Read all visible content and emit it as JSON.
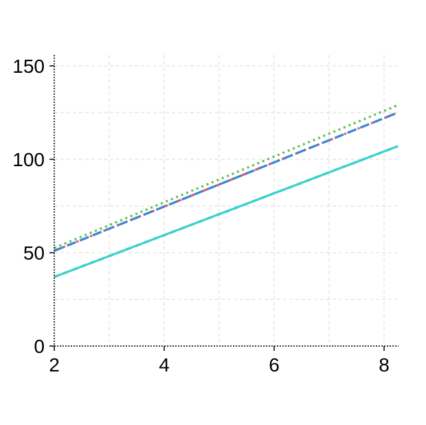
{
  "chart_data": {
    "type": "line",
    "title": "",
    "xlabel": "",
    "ylabel": "",
    "xlim": [
      2,
      8.25
    ],
    "ylim": [
      0,
      150
    ],
    "x_ticks": [
      2,
      4,
      6,
      8
    ],
    "y_ticks": [
      0,
      50,
      100,
      150
    ],
    "x_tick_labels": [
      "2",
      "4",
      "6",
      "8"
    ],
    "y_tick_labels": [
      "0",
      "50",
      "100",
      "150"
    ],
    "grid": true,
    "legend": "none",
    "series": [
      {
        "x": [
          2,
          8.25
        ],
        "y": [
          52.5,
          129
        ],
        "color": "#5cc04a",
        "dash": "3 5"
      },
      {
        "x": [
          2,
          8.25
        ],
        "y": [
          51,
          125
        ],
        "color": "#e05868",
        "dash": "10 4 3 4"
      },
      {
        "x": [
          2,
          8.25
        ],
        "y": [
          51,
          125
        ],
        "color": "#3a86d8",
        "dash": "14 6"
      },
      {
        "x": [
          2,
          8.25
        ],
        "y": [
          37,
          107
        ],
        "color": "#000000",
        "dash": "7 7"
      },
      {
        "x": [
          2,
          8.25
        ],
        "y": [
          37,
          107
        ],
        "color": "#38d4d0",
        "dash": ""
      }
    ]
  }
}
